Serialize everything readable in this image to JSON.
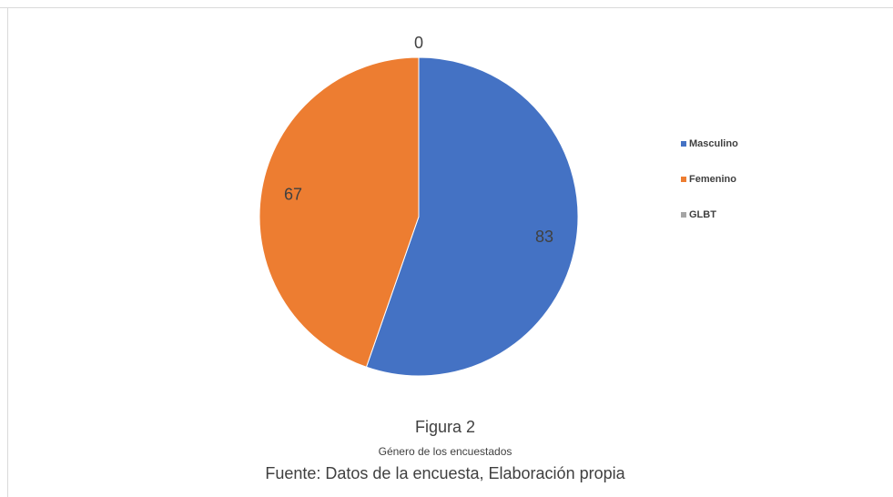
{
  "chart_data": {
    "type": "pie",
    "categories": [
      "Masculino",
      "Femenino",
      "GLBT"
    ],
    "values": [
      83,
      67,
      0
    ],
    "colors": [
      "#4472c4",
      "#ed7d31",
      "#a5a5a5"
    ],
    "legend": "right",
    "caption": [
      "Figura 2",
      "Género de los encuestados",
      "Fuente: Datos de la encuesta, Elaboración propia"
    ]
  }
}
